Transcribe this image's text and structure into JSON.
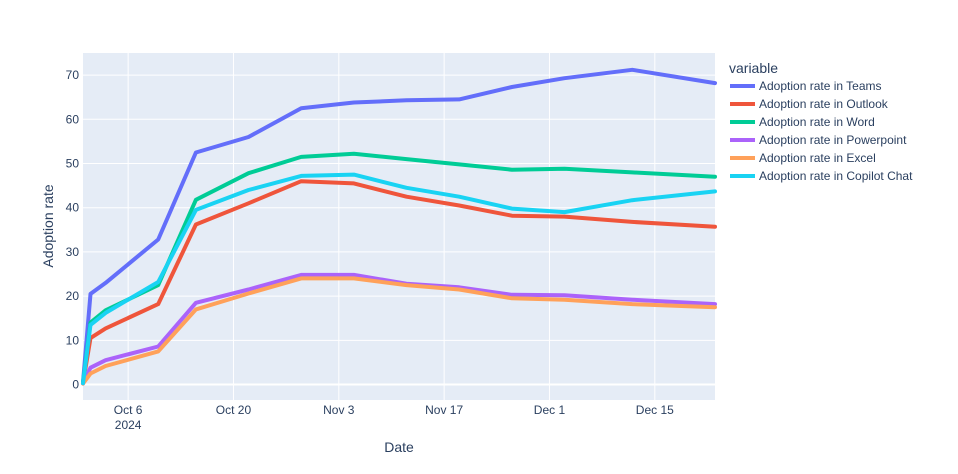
{
  "chart_data": {
    "type": "line",
    "xlabel": "Date",
    "ylabel": "Adoption rate",
    "x": [
      "2024-09-30",
      "2024-10-01",
      "2024-10-03",
      "2024-10-10",
      "2024-10-15",
      "2024-10-22",
      "2024-10-29",
      "2024-11-05",
      "2024-11-12",
      "2024-11-19",
      "2024-11-26",
      "2024-12-03",
      "2024-12-12",
      "2024-12-23"
    ],
    "x_ticks": [
      {
        "value": "2024-10-06",
        "label": "Oct 6",
        "sublabel": "2024"
      },
      {
        "value": "2024-10-20",
        "label": "Oct 20"
      },
      {
        "value": "2024-11-03",
        "label": "Nov 3"
      },
      {
        "value": "2024-11-17",
        "label": "Nov 17"
      },
      {
        "value": "2024-12-01",
        "label": "Dec 1"
      },
      {
        "value": "2024-12-15",
        "label": "Dec 15"
      }
    ],
    "xlim": [
      "2024-09-30",
      "2024-12-23"
    ],
    "ylim": [
      -3.5,
      75
    ],
    "y_ticks": [
      0,
      10,
      20,
      30,
      40,
      50,
      60,
      70
    ],
    "grid": true,
    "legend": {
      "title": "variable",
      "placement": "right"
    },
    "series": [
      {
        "name": "Adoption rate in Teams",
        "color": "#636efa",
        "values": [
          0.5,
          20.5,
          23,
          32.8,
          52.5,
          56,
          62.5,
          63.8,
          64.3,
          64.5,
          67.3,
          69.3,
          71.2,
          68.2
        ]
      },
      {
        "name": "Adoption rate in Outlook",
        "color": "#ef553b",
        "values": [
          0.3,
          10.5,
          12.7,
          18.2,
          36.2,
          41,
          46,
          45.5,
          42.5,
          40.5,
          38.2,
          38,
          36.8,
          35.7
        ]
      },
      {
        "name": "Adoption rate in Word",
        "color": "#00cc96",
        "values": [
          0.5,
          14,
          16.8,
          22.5,
          41.8,
          47.8,
          51.5,
          52.2,
          51,
          49.8,
          48.6,
          48.8,
          48,
          47
        ]
      },
      {
        "name": "Adoption rate in Powerpoint",
        "color": "#ab63fa",
        "values": [
          0.2,
          3.8,
          5.5,
          8.6,
          18.5,
          21.5,
          24.8,
          24.8,
          22.8,
          22,
          20.3,
          20.2,
          19.2,
          18.2
        ]
      },
      {
        "name": "Adoption rate in Excel",
        "color": "#ffa15a",
        "values": [
          0.2,
          2.5,
          4.2,
          7.5,
          17,
          20.6,
          24,
          24,
          22.5,
          21.5,
          19.5,
          19.2,
          18.2,
          17.5
        ]
      },
      {
        "name": "Adoption rate in Copilot Chat",
        "color": "#19d3f3",
        "values": [
          0.3,
          13.5,
          16.2,
          23.2,
          39.5,
          44,
          47.2,
          47.5,
          44.5,
          42.5,
          39.8,
          39,
          41.7,
          43.7
        ]
      }
    ]
  }
}
